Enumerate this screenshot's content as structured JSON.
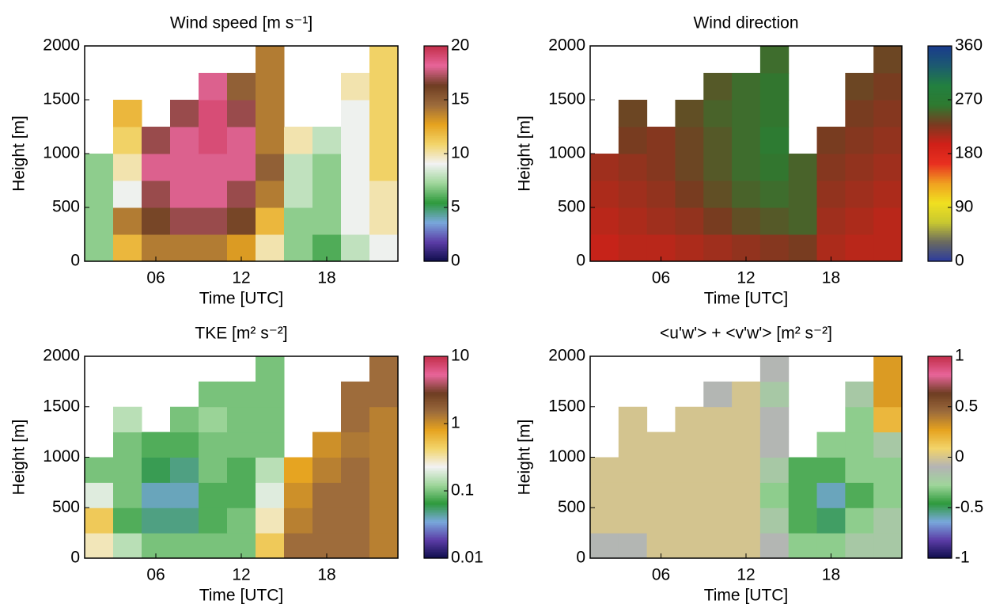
{
  "chart_data": [
    {
      "type": "heatmap",
      "title": "Wind speed [m s⁻¹]",
      "xlabel": "Time [UTC]",
      "ylabel": "Height [m]",
      "x": [
        2,
        4,
        6,
        8,
        10,
        12,
        14,
        16,
        18,
        20,
        22
      ],
      "y": [
        125,
        375,
        625,
        875,
        1125,
        1375,
        1625,
        1875
      ],
      "z": [
        [
          7,
          12,
          14,
          14,
          14,
          13,
          10,
          7,
          6,
          8,
          9
        ],
        [
          7,
          14,
          16,
          17,
          17,
          16,
          12,
          7,
          7,
          9,
          10
        ],
        [
          7,
          9,
          17,
          18,
          18,
          17,
          14,
          8,
          7,
          9,
          10
        ],
        [
          7,
          10,
          18,
          18,
          18,
          18,
          15,
          8,
          7,
          9,
          11
        ],
        [
          null,
          11,
          17,
          18,
          19,
          18,
          14,
          10,
          8,
          9,
          11
        ],
        [
          null,
          12,
          null,
          17,
          19,
          17,
          14,
          null,
          null,
          9,
          11
        ],
        [
          null,
          null,
          null,
          null,
          18,
          15,
          14,
          null,
          null,
          10,
          11
        ],
        [
          null,
          null,
          null,
          null,
          null,
          null,
          14,
          null,
          null,
          null,
          11
        ]
      ],
      "xlim": [
        1,
        23
      ],
      "ylim": [
        0,
        2000
      ],
      "xticks": [
        {
          "value": 6,
          "label": "06"
        },
        {
          "value": 12,
          "label": "12"
        },
        {
          "value": 18,
          "label": "18"
        }
      ],
      "yticks": [
        0,
        500,
        1000,
        1500,
        2000
      ],
      "clim": [
        0,
        20
      ],
      "cticks": [
        0,
        5,
        10,
        15,
        20
      ],
      "cscale": "linear",
      "colormap": [
        "#0d0d4a",
        "#5b3ca6",
        "#79a8dc",
        "#2e9a3c",
        "#9fd69b",
        "#f2f2f2",
        "#f2d46a",
        "#e6a31f",
        "#9c6b3c",
        "#6e3d22",
        "#e8659a",
        "#c22f4a"
      ]
    },
    {
      "type": "heatmap",
      "title": "Wind direction",
      "xlabel": "Time [UTC]",
      "ylabel": "Height [m]",
      "x": [
        2,
        4,
        6,
        8,
        10,
        12,
        14,
        16,
        18,
        20,
        22
      ],
      "y": [
        125,
        375,
        625,
        875,
        1125,
        1375,
        1625,
        1875
      ],
      "z": [
        [
          200,
          205,
          205,
          210,
          215,
          220,
          225,
          230,
          210,
          205,
          205
        ],
        [
          205,
          210,
          215,
          220,
          230,
          240,
          245,
          250,
          215,
          210,
          205
        ],
        [
          210,
          215,
          220,
          230,
          240,
          250,
          255,
          250,
          220,
          215,
          210
        ],
        [
          215,
          220,
          225,
          235,
          245,
          255,
          260,
          250,
          225,
          220,
          215
        ],
        [
          null,
          230,
          225,
          235,
          245,
          255,
          265,
          null,
          230,
          225,
          220
        ],
        [
          null,
          235,
          null,
          240,
          250,
          255,
          260,
          null,
          null,
          230,
          225
        ],
        [
          null,
          null,
          null,
          null,
          245,
          255,
          260,
          null,
          null,
          235,
          230
        ],
        [
          null,
          null,
          null,
          null,
          null,
          null,
          255,
          null,
          null,
          null,
          235
        ]
      ],
      "xlim": [
        1,
        23
      ],
      "ylim": [
        0,
        2000
      ],
      "xticks": [
        {
          "value": 6,
          "label": "06"
        },
        {
          "value": 12,
          "label": "12"
        },
        {
          "value": 18,
          "label": "18"
        }
      ],
      "yticks": [
        0,
        500,
        1000,
        1500,
        2000
      ],
      "clim": [
        0,
        360
      ],
      "cticks": [
        0,
        90,
        180,
        270,
        360
      ],
      "cscale": "linear",
      "colormap": [
        "#2a3aa0",
        "#6a6a60",
        "#c8c830",
        "#f0e020",
        "#f0a020",
        "#e83020",
        "#d02018",
        "#7a3a20",
        "#2e7a30",
        "#228040",
        "#1c5a70",
        "#1a3c8c"
      ]
    },
    {
      "type": "heatmap",
      "title": "TKE [m² s⁻²]",
      "xlabel": "Time [UTC]",
      "ylabel": "Height [m]",
      "x": [
        2,
        4,
        6,
        8,
        10,
        12,
        14,
        16,
        18,
        20,
        22
      ],
      "y": [
        125,
        375,
        625,
        875,
        1125,
        1375,
        1625,
        1875
      ],
      "z": [
        [
          0.3,
          0.15,
          0.1,
          0.1,
          0.1,
          0.1,
          0.5,
          1.5,
          1.5,
          1.5,
          1.2
        ],
        [
          0.5,
          0.08,
          0.05,
          0.05,
          0.08,
          0.1,
          0.3,
          1.2,
          1.5,
          1.5,
          1.2
        ],
        [
          0.2,
          0.1,
          0.04,
          0.04,
          0.08,
          0.08,
          0.2,
          1,
          1.5,
          1.5,
          1.2
        ],
        [
          0.1,
          0.1,
          0.06,
          0.05,
          0.1,
          0.08,
          0.15,
          0.8,
          1.2,
          1.5,
          1.2
        ],
        [
          null,
          0.1,
          0.08,
          0.08,
          0.1,
          0.1,
          0.1,
          null,
          1,
          1.3,
          1.2
        ],
        [
          null,
          0.15,
          null,
          0.1,
          0.12,
          0.1,
          0.1,
          null,
          null,
          1.5,
          1.2
        ],
        [
          null,
          null,
          null,
          null,
          0.1,
          0.1,
          0.1,
          null,
          null,
          1.5,
          1.5
        ],
        [
          null,
          null,
          null,
          null,
          null,
          null,
          0.1,
          null,
          null,
          null,
          1.5
        ]
      ],
      "xlim": [
        1,
        23
      ],
      "ylim": [
        0,
        2000
      ],
      "xticks": [
        {
          "value": 6,
          "label": "06"
        },
        {
          "value": 12,
          "label": "12"
        },
        {
          "value": 18,
          "label": "18"
        }
      ],
      "yticks": [
        0,
        500,
        1000,
        1500,
        2000
      ],
      "clim": [
        0.01,
        10
      ],
      "cticks": [
        0.01,
        0.1,
        1,
        10
      ],
      "cscale": "log",
      "colormap": [
        "#0d0d4a",
        "#5b3ca6",
        "#79a8dc",
        "#2e9a3c",
        "#9fd69b",
        "#f2f2f2",
        "#f2d46a",
        "#e6a31f",
        "#9c6b3c",
        "#6e3d22",
        "#e8659a",
        "#c22f4a"
      ]
    },
    {
      "type": "heatmap",
      "title": "<u'w'> + <v'w'> [m² s⁻²]",
      "xlabel": "Time [UTC]",
      "ylabel": "Height [m]",
      "x": [
        2,
        4,
        6,
        8,
        10,
        12,
        14,
        16,
        18,
        20,
        22
      ],
      "y": [
        125,
        375,
        625,
        875,
        1125,
        1375,
        1625,
        1875
      ],
      "z": [
        [
          -0.1,
          -0.1,
          0,
          0,
          0,
          0,
          -0.1,
          -0.3,
          -0.3,
          -0.2,
          -0.2
        ],
        [
          0,
          0,
          0,
          0,
          0,
          0,
          -0.2,
          -0.4,
          -0.5,
          -0.3,
          -0.2
        ],
        [
          0,
          0,
          0,
          0,
          0,
          0,
          -0.3,
          -0.4,
          -0.6,
          -0.4,
          -0.3
        ],
        [
          0,
          0,
          0,
          0,
          0,
          0,
          -0.2,
          -0.4,
          -0.4,
          -0.3,
          -0.3
        ],
        [
          null,
          0,
          0,
          0,
          0,
          0,
          -0.1,
          null,
          -0.3,
          -0.3,
          -0.2
        ],
        [
          null,
          0,
          null,
          0,
          0,
          0,
          -0.1,
          null,
          null,
          -0.3,
          0.2
        ],
        [
          null,
          null,
          null,
          null,
          -0.1,
          0,
          -0.2,
          null,
          null,
          -0.2,
          0.3
        ],
        [
          null,
          null,
          null,
          null,
          null,
          null,
          -0.1,
          null,
          null,
          null,
          0.3
        ]
      ],
      "xlim": [
        1,
        23
      ],
      "ylim": [
        0,
        2000
      ],
      "xticks": [
        {
          "value": 6,
          "label": "06"
        },
        {
          "value": 12,
          "label": "12"
        },
        {
          "value": 18,
          "label": "18"
        }
      ],
      "yticks": [
        0,
        500,
        1000,
        1500,
        2000
      ],
      "clim": [
        -1,
        1
      ],
      "cticks": [
        -1,
        -0.5,
        0,
        0.5,
        1
      ],
      "cscale": "linear",
      "colormap": [
        "#0d0d4a",
        "#5b3ca6",
        "#79a8dc",
        "#2e9a3c",
        "#9fd69b",
        "#b4b4b4",
        "#f2d46a",
        "#e6a31f",
        "#9c6b3c",
        "#6e3d22",
        "#e8659a",
        "#c22f4a"
      ]
    }
  ]
}
